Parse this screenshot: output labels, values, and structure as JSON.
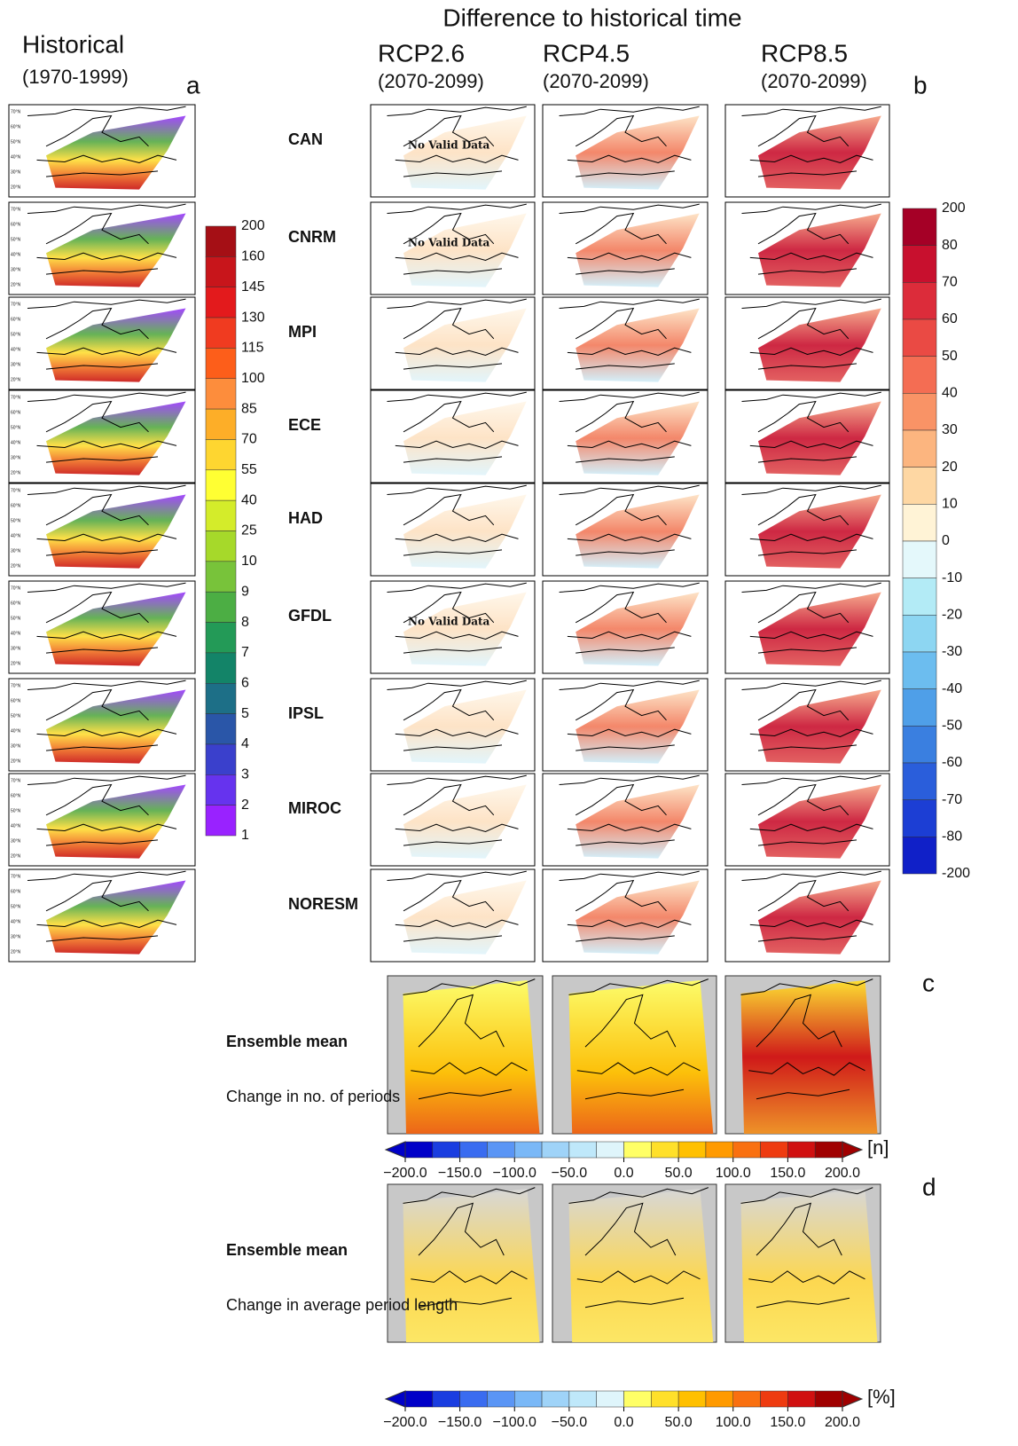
{
  "header": {
    "title": "Difference to historical time"
  },
  "historical": {
    "title": "Historical",
    "period": "(1970-1999)"
  },
  "scenarios": [
    {
      "name": "RCP2.6",
      "period": "(2070-2099)"
    },
    {
      "name": "RCP4.5",
      "period": "(2070-2099)"
    },
    {
      "name": "RCP8.5",
      "period": "(2070-2099)"
    }
  ],
  "panel_letters": [
    "a",
    "b",
    "c",
    "d"
  ],
  "lat_labels": [
    "70°N",
    "60°N",
    "50°N",
    "40°N",
    "30°N",
    "20°N"
  ],
  "models": [
    {
      "name": "CAN",
      "rcp26_text": "No Valid Data"
    },
    {
      "name": "CNRM",
      "rcp26_text": "No Valid Data"
    },
    {
      "name": "MPI"
    },
    {
      "name": "ECE"
    },
    {
      "name": "HAD"
    },
    {
      "name": "GFDL",
      "rcp26_text": "No Valid Data"
    },
    {
      "name": "IPSL"
    },
    {
      "name": "MIROC"
    },
    {
      "name": "NORESM"
    }
  ],
  "colorbar_a": {
    "labels": [
      200,
      160,
      145,
      130,
      115,
      100,
      85,
      70,
      55,
      40,
      25,
      10,
      9,
      8,
      7,
      6,
      5,
      4,
      3,
      2,
      1
    ],
    "colors": [
      "#a50f15",
      "#c8151b",
      "#e31a1c",
      "#f03b20",
      "#fd5e1a",
      "#fd8d3c",
      "#fdae28",
      "#fed630",
      "#ffff33",
      "#d4ec2a",
      "#a6d92a",
      "#78c33a",
      "#4cae44",
      "#239a57",
      "#138468",
      "#1d6f87",
      "#2a56a8",
      "#3a40cc",
      "#6633ee",
      "#9922ff"
    ]
  },
  "colorbar_b": {
    "labels": [
      200,
      80,
      70,
      60,
      50,
      40,
      30,
      20,
      10,
      0,
      -10,
      -20,
      -30,
      -40,
      -50,
      -60,
      -70,
      -80,
      -200
    ],
    "colors": [
      "#a50026",
      "#c8102e",
      "#dc2c3a",
      "#ea4a44",
      "#f46d53",
      "#f99366",
      "#fcb57f",
      "#fed7a3",
      "#fff3d6",
      "#e4f8fb",
      "#b3ebf6",
      "#8dd6f2",
      "#6cbdef",
      "#4f9fe8",
      "#3a7fe0",
      "#2a5edb",
      "#1c3ed4",
      "#1020c8"
    ]
  },
  "ensemble": [
    {
      "title": "Ensemble mean",
      "description": "Change in no. of periods",
      "unit": "[n]"
    },
    {
      "title": "Ensemble mean",
      "description": "Change in average period length",
      "unit": "[%]"
    }
  ],
  "colorbar_cd": {
    "ticks": [
      {
        "value": -200,
        "label": "−200.0"
      },
      {
        "value": -150,
        "label": "−150.0"
      },
      {
        "value": -100,
        "label": "−100.0"
      },
      {
        "value": -50,
        "label": "−50.0"
      },
      {
        "value": 0,
        "label": "0.0"
      },
      {
        "value": 50,
        "label": "50.0"
      },
      {
        "value": 100,
        "label": "100.0"
      },
      {
        "value": 150,
        "label": "150.0"
      },
      {
        "value": 200,
        "label": "200.0"
      }
    ],
    "lim": [
      -200,
      200
    ],
    "colors": [
      "#0000c8",
      "#1a3de0",
      "#3a6cf0",
      "#5a95f5",
      "#7ab8f7",
      "#9fd3f8",
      "#bfe8fa",
      "#dff5fb",
      "#ffff66",
      "#ffe02a",
      "#ffc000",
      "#ff9a00",
      "#f97010",
      "#ee3b10",
      "#d01010",
      "#a00000"
    ]
  }
}
